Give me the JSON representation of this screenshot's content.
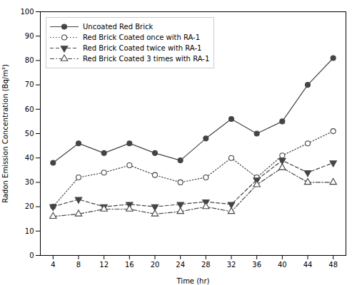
{
  "chart_data": {
    "type": "line",
    "x": [
      4,
      8,
      12,
      16,
      20,
      24,
      28,
      32,
      36,
      40,
      44,
      48
    ],
    "series": [
      {
        "name": "Uncoated Red Brick",
        "color": "#444444",
        "marker": "circle",
        "line_style": "solid",
        "values": [
          38,
          46,
          42,
          46,
          42,
          39,
          48,
          56,
          50,
          55,
          70,
          81
        ]
      },
      {
        "name": "Red Brick Coated once with RA-1",
        "color": "#444444",
        "marker": "circle-open",
        "line_style": "dotted",
        "values": [
          20,
          32,
          34,
          37,
          33,
          30,
          32,
          40,
          32,
          41,
          46,
          51
        ]
      },
      {
        "name": "Red Brick Coated twice with RA-1",
        "color": "#444444",
        "marker": "triangle-down",
        "line_style": "dashed",
        "values": [
          20,
          23,
          20,
          21,
          20,
          21,
          22,
          21,
          31,
          39,
          34,
          38
        ]
      },
      {
        "name": "Red Brick Coated 3 times with RA-1",
        "color": "#444444",
        "marker": "triangle-up-open",
        "line_style": "dashdot",
        "values": [
          16,
          17,
          19,
          19,
          17,
          18,
          20,
          18,
          29,
          36,
          30,
          30
        ]
      }
    ],
    "xlabel": "Time (hr)",
    "ylabel": "Radon Emission Concentration (Bq/m³)",
    "xlim": [
      2,
      50
    ],
    "ylim": [
      0,
      100
    ],
    "xticks": [
      4,
      8,
      12,
      16,
      20,
      24,
      28,
      32,
      36,
      40,
      44,
      48
    ],
    "yticks": [
      0,
      10,
      20,
      30,
      40,
      50,
      60,
      70,
      80,
      90,
      100
    ],
    "grid": false,
    "legend": "upper left"
  }
}
